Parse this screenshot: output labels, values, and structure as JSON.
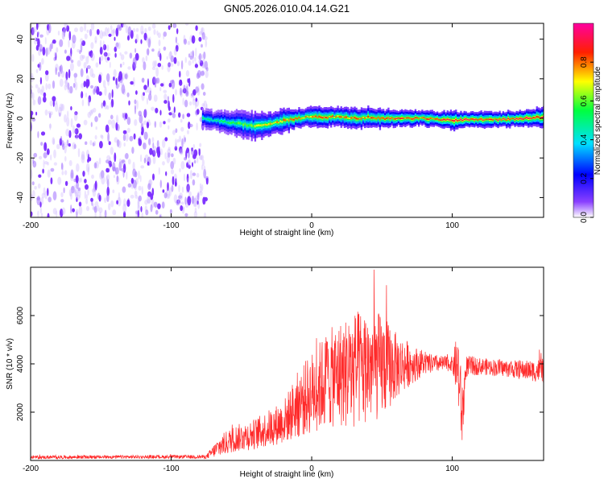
{
  "title": "GN05.2026.010.04.14.G21",
  "chart_data": [
    {
      "type": "heatmap",
      "xlabel": "Height of straight line (km)",
      "ylabel": "Frequency (Hz)",
      "xlim": [
        -200,
        165
      ],
      "ylim": [
        -50,
        48
      ],
      "xticks": [
        -200,
        -100,
        0,
        100
      ],
      "yticks": [
        -40,
        -20,
        0,
        20,
        40
      ],
      "colorbar": {
        "label": "Normalized spectral amplitude",
        "range": [
          0,
          1
        ],
        "ticks": [
          "0.0",
          "0.2",
          "0.4",
          "0.6",
          "0.8"
        ],
        "colors": [
          "#ffffff",
          "#6a00ff",
          "#0000ff",
          "#00e0ff",
          "#00ff40",
          "#ffff00",
          "#ff2000",
          "#ff00a0"
        ]
      },
      "noise_region_x": [
        -200,
        -78
      ],
      "noise_color": "#7a2cff",
      "signal_ridge": {
        "x": [
          -78,
          -70,
          -60,
          -50,
          -40,
          -30,
          -20,
          -10,
          0,
          10,
          20,
          30,
          40,
          50,
          60,
          70,
          80,
          90,
          100,
          110,
          120,
          130,
          140,
          150,
          160,
          165
        ],
        "freq": [
          0,
          -1,
          -2,
          -3,
          -4,
          -3,
          -1,
          0,
          1,
          0.5,
          1,
          0,
          0.5,
          0,
          0,
          0,
          0,
          -0.5,
          -1,
          -0.5,
          -0.5,
          -0.5,
          -0.5,
          0,
          0.5,
          0.5
        ],
        "width": [
          5,
          5,
          6,
          7,
          7,
          6,
          6,
          5,
          5,
          5,
          5,
          5,
          5,
          5,
          4,
          4,
          4,
          4,
          5,
          4,
          4,
          4,
          4,
          4,
          5,
          5
        ],
        "peak": [
          0.5,
          0.5,
          0.55,
          0.6,
          0.7,
          0.75,
          0.8,
          0.8,
          0.8,
          0.85,
          0.8,
          0.8,
          0.85,
          0.85,
          0.9,
          0.85,
          0.85,
          0.9,
          0.95,
          0.95,
          0.9,
          0.9,
          0.95,
          0.95,
          0.95,
          0.95
        ]
      }
    },
    {
      "type": "line",
      "xlabel": "Height of straight line (km)",
      "ylabel": "SNR (10 * v/v)",
      "xlim": [
        -200,
        165
      ],
      "ylim": [
        0,
        8000
      ],
      "xticks": [
        -200,
        -100,
        0,
        100
      ],
      "yticks": [
        2000,
        4000,
        6000
      ],
      "color": "#ff2a2a",
      "envelope": {
        "x": [
          -200,
          -150,
          -100,
          -75,
          -65,
          -55,
          -40,
          -20,
          -10,
          0,
          10,
          20,
          30,
          40,
          50,
          60,
          70,
          80,
          90,
          100,
          104,
          107,
          110,
          120,
          140,
          160,
          165
        ],
        "mean": [
          130,
          140,
          150,
          150,
          600,
          900,
          1100,
          1600,
          2300,
          2800,
          3300,
          3600,
          3700,
          3900,
          3900,
          3900,
          4000,
          4000,
          4000,
          4000,
          3900,
          1800,
          3900,
          3900,
          3800,
          3700,
          3800
        ],
        "amp": [
          70,
          70,
          70,
          80,
          450,
          550,
          650,
          900,
          1400,
          1700,
          2000,
          2200,
          2500,
          2400,
          2200,
          1400,
          900,
          450,
          350,
          300,
          1500,
          1500,
          450,
          350,
          350,
          450,
          600
        ]
      }
    }
  ]
}
